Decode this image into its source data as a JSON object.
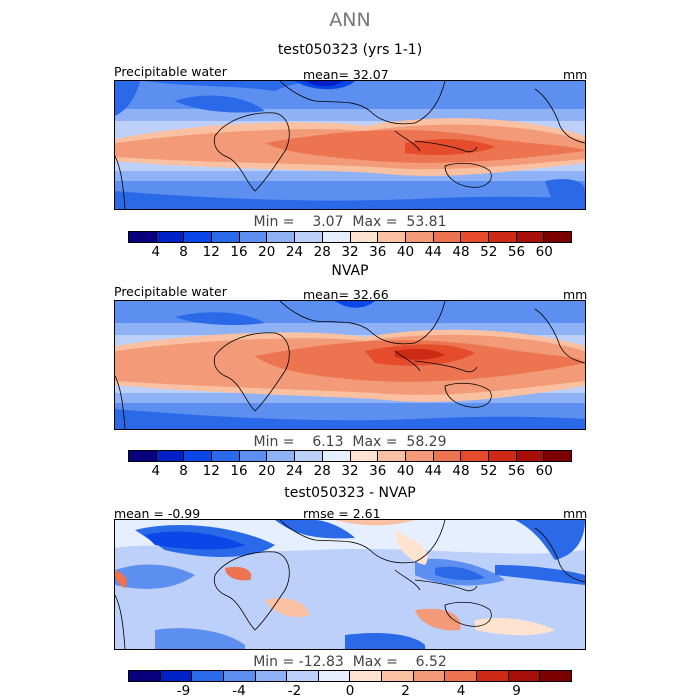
{
  "figure": {
    "title": "ANN"
  },
  "panels": [
    {
      "title": "test050323 (yrs 1-1)",
      "left_label": "Precipitable water",
      "stat_label": "mean=  32.07",
      "units": "mm",
      "minmax": "Min =    3.07  Max =  53.81",
      "colorbar_labels": [
        "4",
        "8",
        "12",
        "16",
        "20",
        "24",
        "28",
        "32",
        "36",
        "40",
        "44",
        "48",
        "52",
        "56",
        "60"
      ]
    },
    {
      "title": "NVAP",
      "left_label": "Precipitable water",
      "stat_label": "mean=  32.66",
      "units": "mm",
      "minmax": "Min =    6.13  Max =  58.29",
      "colorbar_labels": [
        "4",
        "8",
        "12",
        "16",
        "20",
        "24",
        "28",
        "32",
        "36",
        "40",
        "44",
        "48",
        "52",
        "56",
        "60"
      ]
    },
    {
      "title": "test050323 - NVAP",
      "left_label": "mean =  -0.99",
      "stat_label": "rmse =   2.61",
      "units": "mm",
      "minmax": "Min = -12.83  Max =    6.52",
      "colorbar_labels": [
        "-9",
        "-4",
        "-2",
        "0",
        "2",
        "4",
        "9"
      ]
    }
  ],
  "colors": {
    "seq": [
      "#08007c",
      "#0021c5",
      "#0a47e8",
      "#2a6ae9",
      "#5d8ff0",
      "#8fb1f5",
      "#bcd0fa",
      "#e6efff",
      "#fde3d0",
      "#f9c1a2",
      "#f39b78",
      "#ec7450",
      "#e44c2c",
      "#cd2a16",
      "#a70f08",
      "#7d0000"
    ],
    "diff": [
      "#08007c",
      "#0021c5",
      "#2a6ae9",
      "#5d8ff0",
      "#8fb1f5",
      "#bcd0fa",
      "#e6efff",
      "#fde3d0",
      "#f9c1a2",
      "#f39b78",
      "#ec7450",
      "#cd2a16",
      "#a70f08",
      "#7d0000"
    ],
    "coast": "#000000"
  }
}
